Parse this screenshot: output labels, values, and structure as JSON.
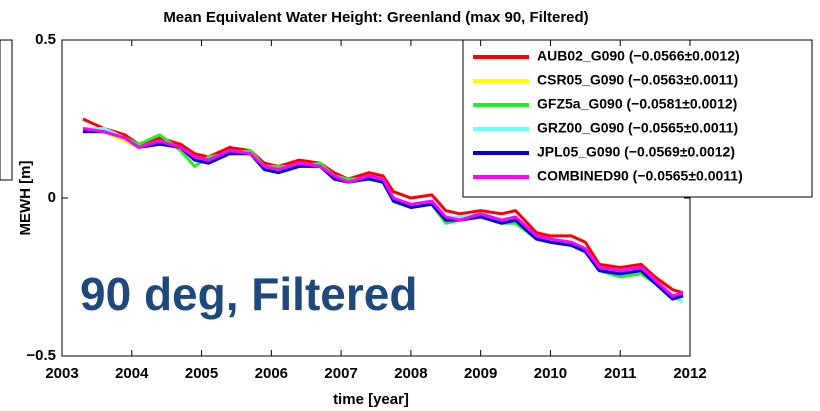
{
  "chart_data": {
    "type": "line",
    "title": "Mean Equivalent Water Height: Greenland (max 90, Filtered)",
    "x_label": "time [year]",
    "y_label": "MEWH [m]",
    "annotation": "90 deg, Filtered",
    "legend": "upper right",
    "xlim": [
      2003,
      2012
    ],
    "xticks": [
      2003,
      2004,
      2005,
      2006,
      2007,
      2008,
      2009,
      2010,
      2011,
      2012
    ],
    "ylim": [
      -0.5,
      0.5
    ],
    "yticks": [
      {
        "value": -0.5,
        "label": "−0.5"
      },
      0,
      0.5
    ],
    "x": [
      2003.3,
      2003.6,
      2003.9,
      2004.1,
      2004.4,
      2004.7,
      2004.9,
      2005.1,
      2005.4,
      2005.7,
      2005.9,
      2006.1,
      2006.4,
      2006.7,
      2006.9,
      2007.1,
      2007.4,
      2007.6,
      2007.75,
      2008.0,
      2008.3,
      2008.5,
      2008.7,
      2009.0,
      2009.3,
      2009.5,
      2009.8,
      2010.0,
      2010.3,
      2010.5,
      2010.7,
      2011.0,
      2011.3,
      2011.5,
      2011.75,
      2011.9
    ],
    "series": [
      {
        "name": "AUB02_G090 (−0.0566±0.0012)",
        "color": "#ff0000",
        "values": [
          0.25,
          0.22,
          0.2,
          0.17,
          0.19,
          0.17,
          0.14,
          0.13,
          0.16,
          0.15,
          0.11,
          0.1,
          0.12,
          0.11,
          0.08,
          0.06,
          0.08,
          0.07,
          0.02,
          0.0,
          0.01,
          -0.04,
          -0.05,
          -0.04,
          -0.05,
          -0.04,
          -0.11,
          -0.12,
          -0.12,
          -0.14,
          -0.21,
          -0.22,
          -0.21,
          -0.25,
          -0.29,
          -0.3
        ]
      },
      {
        "name": "CSR05_G090 (−0.0563±0.0011)",
        "color": "#ffff00",
        "values": [
          0.22,
          0.21,
          0.18,
          0.16,
          0.17,
          0.16,
          0.12,
          0.12,
          0.14,
          0.14,
          0.09,
          0.09,
          0.1,
          0.1,
          0.06,
          0.05,
          0.06,
          0.06,
          -0.01,
          -0.02,
          -0.02,
          -0.07,
          -0.07,
          -0.06,
          -0.07,
          -0.07,
          -0.13,
          -0.13,
          -0.15,
          -0.16,
          -0.23,
          -0.23,
          -0.23,
          -0.26,
          -0.31,
          -0.31
        ]
      },
      {
        "name": "GFZ5a_G090 (−0.0581±0.0012)",
        "color": "#22ee22",
        "values": [
          0.22,
          0.22,
          0.19,
          0.17,
          0.2,
          0.15,
          0.1,
          0.13,
          0.14,
          0.15,
          0.1,
          0.1,
          0.1,
          0.11,
          0.07,
          0.06,
          0.06,
          0.05,
          -0.01,
          -0.03,
          -0.02,
          -0.08,
          -0.07,
          -0.05,
          -0.08,
          -0.08,
          -0.13,
          -0.14,
          -0.15,
          -0.17,
          -0.23,
          -0.25,
          -0.24,
          -0.27,
          -0.32,
          -0.31
        ]
      },
      {
        "name": "GRZ00_G090 (−0.0565±0.0011)",
        "color": "#66ffff",
        "values": [
          0.22,
          0.22,
          0.19,
          0.16,
          0.18,
          0.16,
          0.13,
          0.12,
          0.15,
          0.14,
          0.1,
          0.09,
          0.11,
          0.1,
          0.07,
          0.05,
          0.07,
          0.06,
          0.0,
          -0.02,
          -0.01,
          -0.06,
          -0.06,
          -0.05,
          -0.07,
          -0.06,
          -0.12,
          -0.13,
          -0.14,
          -0.16,
          -0.22,
          -0.24,
          -0.22,
          -0.26,
          -0.31,
          -0.33
        ]
      },
      {
        "name": "JPL05_G090  (−0.0569±0.0012)",
        "color": "#0000dd",
        "values": [
          0.21,
          0.21,
          0.19,
          0.16,
          0.17,
          0.16,
          0.12,
          0.11,
          0.14,
          0.14,
          0.09,
          0.08,
          0.1,
          0.1,
          0.06,
          0.05,
          0.06,
          0.05,
          -0.01,
          -0.03,
          -0.02,
          -0.07,
          -0.07,
          -0.06,
          -0.08,
          -0.07,
          -0.13,
          -0.14,
          -0.15,
          -0.17,
          -0.23,
          -0.24,
          -0.23,
          -0.27,
          -0.32,
          -0.31
        ]
      },
      {
        "name": "COMBINED90 (−0.0565±0.0011)",
        "color": "#ff00ff",
        "values": [
          0.22,
          0.21,
          0.19,
          0.16,
          0.18,
          0.16,
          0.13,
          0.12,
          0.15,
          0.14,
          0.1,
          0.09,
          0.11,
          0.1,
          0.07,
          0.05,
          0.07,
          0.06,
          0.0,
          -0.02,
          -0.01,
          -0.06,
          -0.07,
          -0.05,
          -0.07,
          -0.06,
          -0.12,
          -0.13,
          -0.14,
          -0.16,
          -0.22,
          -0.23,
          -0.22,
          -0.26,
          -0.31,
          -0.3
        ]
      }
    ]
  }
}
